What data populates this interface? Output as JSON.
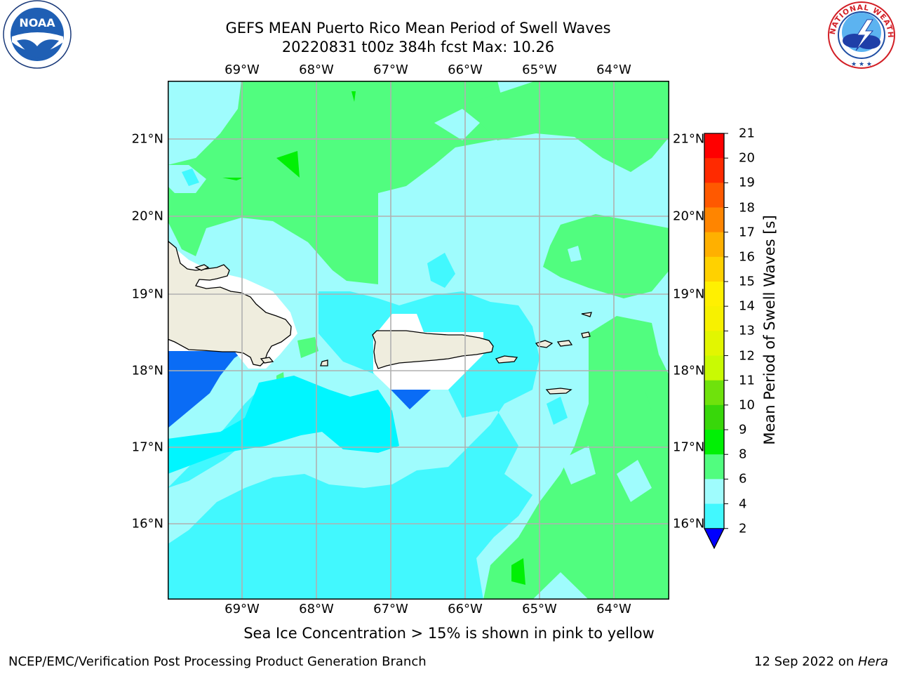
{
  "title": {
    "line1": "GEFS MEAN Puerto Rico Mean Period of Swell Waves",
    "line2": "20220831 t00z 384h fcst   Max: 10.26"
  },
  "axes": {
    "lon_labels": [
      "69°W",
      "68°W",
      "67°W",
      "66°W",
      "65°W",
      "64°W"
    ],
    "lat_labels": [
      "21°N",
      "20°N",
      "19°N",
      "18°N",
      "17°N",
      "16°N"
    ],
    "lon_range": [
      -70,
      -63.25
    ],
    "lat_range": [
      15,
      21.7
    ],
    "grid": true
  },
  "colorbar": {
    "label": "Mean Period of Swell Waves [s]",
    "ticks": [
      "21",
      "20",
      "19",
      "18",
      "17",
      "16",
      "15",
      "14",
      "13",
      "12",
      "11",
      "10",
      "9",
      "8",
      "6",
      "4",
      "2"
    ],
    "levels": [
      2,
      4,
      6,
      8,
      9,
      10,
      11,
      12,
      13,
      14,
      15,
      16,
      17,
      18,
      19,
      20,
      21
    ],
    "colors": [
      "#0a6cf5",
      "#00f6ff",
      "#42f8fe",
      "#9ffcfd",
      "#51fd7f",
      "#01f005",
      "#38d70a",
      "#6fe20c",
      "#c9fa03",
      "#e2f601",
      "#f7f100",
      "#fff001",
      "#ffd100",
      "#ffb000",
      "#ff8500",
      "#ff5900",
      "#ff2a00",
      "#ff0000"
    ],
    "under_color": "#0000ff"
  },
  "colors": {
    "land": "#efedde",
    "coast": "#000000",
    "grid": "#b0b0b0",
    "nodata": "#ffffff"
  },
  "icons": {
    "left_logo": "noaa-logo",
    "right_logo": "national-weather-service-logo"
  },
  "footer": {
    "note": "Sea Ice Concentration > 15% is shown in pink to yellow",
    "credit": "NCEP/EMC/Verification Post Processing Product Generation Branch",
    "date_prefix": "12 Sep 2022 on ",
    "host": "Hera"
  }
}
